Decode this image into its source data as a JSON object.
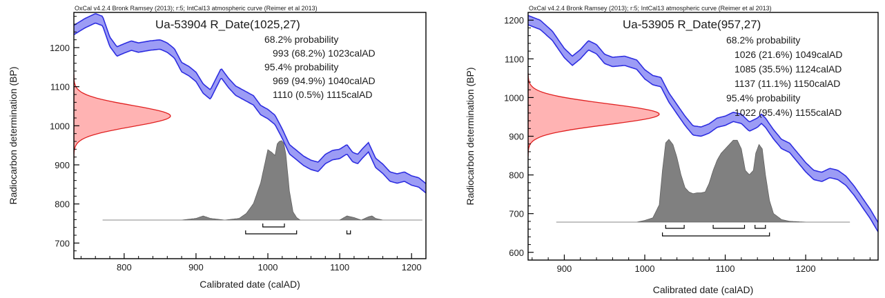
{
  "colors": {
    "curve_fill": "#9c9cf5",
    "curve_edge": "#2d2de0",
    "radiocarbon_fill": "#ffb3b3",
    "radiocarbon_edge": "#e02020",
    "calibrated_fill": "#808080",
    "frame": "#000000"
  },
  "chart_data": [
    {
      "type": "area",
      "header": "OxCal v4.2.4 Bronk Ramsey (2013); r:5; IntCal13 atmospheric curve (Reimer et al 2013)",
      "title": "Ua-53904 R_Date(1025,27)",
      "summary": [
        "68.2% probability",
        "993 (68.2%) 1023calAD",
        "95.4% probability",
        "969 (94.9%) 1040calAD",
        "1110 (0.5%) 1115calAD"
      ],
      "xlabel": "Calibrated date (calAD)",
      "ylabel": "Radiocarbon determination (BP)",
      "xlim": [
        730,
        1220
      ],
      "ylim": [
        660,
        1290
      ],
      "xticks": [
        800,
        900,
        1000,
        1100,
        1200
      ],
      "yticks": [
        700,
        800,
        900,
        1000,
        1100,
        1200
      ],
      "calibration_curve": {
        "x": [
          730,
          745,
          760,
          770,
          780,
          790,
          800,
          810,
          820,
          835,
          850,
          860,
          870,
          880,
          890,
          900,
          910,
          920,
          935,
          945,
          955,
          965,
          980,
          990,
          1000,
          1010,
          1020,
          1030,
          1040,
          1050,
          1060,
          1070,
          1080,
          1090,
          1100,
          1110,
          1118,
          1125,
          1132,
          1140,
          1145,
          1150,
          1160,
          1170,
          1180,
          1190,
          1200,
          1210,
          1220
        ],
        "y": [
          1245,
          1262,
          1275,
          1268,
          1215,
          1190,
          1198,
          1205,
          1200,
          1205,
          1208,
          1200,
          1185,
          1150,
          1140,
          1125,
          1095,
          1080,
          1135,
          1110,
          1090,
          1080,
          1065,
          1040,
          1030,
          1015,
          980,
          940,
          925,
          910,
          900,
          895,
          915,
          925,
          928,
          940,
          920,
          915,
          930,
          945,
          925,
          905,
          890,
          870,
          865,
          870,
          860,
          855,
          840
        ],
        "half_width": 12
      },
      "radiocarbon_determination": {
        "mean": 1025,
        "sigma": 27
      },
      "calibrated_distribution": {
        "x": [
          770,
          880,
          900,
          910,
          920,
          940,
          960,
          970,
          980,
          990,
          1000,
          1005,
          1010,
          1013,
          1016,
          1019,
          1022,
          1025,
          1030,
          1035,
          1040,
          1045,
          1060,
          1100,
          1110,
          1120,
          1130,
          1140,
          1145,
          1150,
          1160,
          1215
        ],
        "y": [
          0,
          0,
          0.02,
          0.05,
          0.02,
          0,
          0.02,
          0.08,
          0.2,
          0.45,
          0.85,
          0.82,
          0.78,
          0.92,
          0.95,
          0.96,
          0.93,
          0.8,
          0.35,
          0.1,
          0.03,
          0,
          0,
          0,
          0.05,
          0.03,
          0,
          0.04,
          0.05,
          0.02,
          0,
          0
        ]
      },
      "ranges_68": [
        [
          993,
          1023
        ]
      ],
      "ranges_95": [
        [
          969,
          1040
        ],
        [
          1110,
          1115
        ]
      ]
    },
    {
      "type": "area",
      "header": "OxCal v4.2.4 Bronk Ramsey (2013); r:5; IntCal13 atmospheric curve (Reimer et al 2013)",
      "title": "Ua-53905 R_Date(957,27)",
      "summary": [
        "68.2% probability",
        "1026 (21.6%) 1049calAD",
        "1085 (35.5%) 1124calAD",
        "1137 (11.1%) 1150calAD",
        "95.4% probability",
        "1022 (95.4%) 1155calAD"
      ],
      "xlabel": "Calibrated date (calAD)",
      "ylabel": "Radiocarbon determination (BP)",
      "xlim": [
        855,
        1290
      ],
      "ylim": [
        580,
        1220
      ],
      "xticks": [
        900,
        1000,
        1100,
        1200
      ],
      "yticks": [
        600,
        700,
        800,
        900,
        1000,
        1100,
        1200
      ],
      "calibration_curve": {
        "x": [
          855,
          870,
          885,
          900,
          910,
          920,
          930,
          940,
          950,
          960,
          975,
          990,
          1000,
          1010,
          1020,
          1030,
          1040,
          1050,
          1060,
          1070,
          1080,
          1090,
          1100,
          1110,
          1120,
          1130,
          1140,
          1145,
          1150,
          1160,
          1170,
          1180,
          1190,
          1200,
          1210,
          1220,
          1230,
          1240,
          1250,
          1260,
          1270,
          1280,
          1290
        ],
        "y": [
          1200,
          1188,
          1160,
          1115,
          1095,
          1112,
          1135,
          1125,
          1100,
          1092,
          1095,
          1085,
          1060,
          1045,
          1040,
          1000,
          970,
          940,
          915,
          912,
          920,
          935,
          940,
          950,
          945,
          925,
          935,
          945,
          935,
          905,
          880,
          870,
          845,
          820,
          800,
          795,
          805,
          800,
          785,
          760,
          730,
          700,
          665
        ],
        "half_width": 12
      },
      "radiocarbon_determination": {
        "mean": 957,
        "sigma": 27
      },
      "calibrated_distribution": {
        "x": [
          890,
          990,
          1000,
          1010,
          1018,
          1022,
          1026,
          1030,
          1035,
          1040,
          1045,
          1050,
          1055,
          1060,
          1065,
          1070,
          1075,
          1080,
          1085,
          1090,
          1095,
          1100,
          1105,
          1110,
          1115,
          1120,
          1125,
          1130,
          1135,
          1138,
          1142,
          1146,
          1150,
          1155,
          1160,
          1170,
          1180,
          1200,
          1255
        ],
        "y": [
          0,
          0,
          0.02,
          0.05,
          0.2,
          0.6,
          0.92,
          0.96,
          0.9,
          0.75,
          0.55,
          0.4,
          0.35,
          0.33,
          0.34,
          0.34,
          0.35,
          0.45,
          0.6,
          0.72,
          0.8,
          0.85,
          0.9,
          0.95,
          0.95,
          0.85,
          0.6,
          0.55,
          0.6,
          0.8,
          0.9,
          0.85,
          0.55,
          0.25,
          0.1,
          0.03,
          0.01,
          0,
          0
        ]
      },
      "ranges_68": [
        [
          1026,
          1049
        ],
        [
          1085,
          1124
        ],
        [
          1137,
          1150
        ]
      ],
      "ranges_95": [
        [
          1022,
          1155
        ]
      ]
    }
  ]
}
